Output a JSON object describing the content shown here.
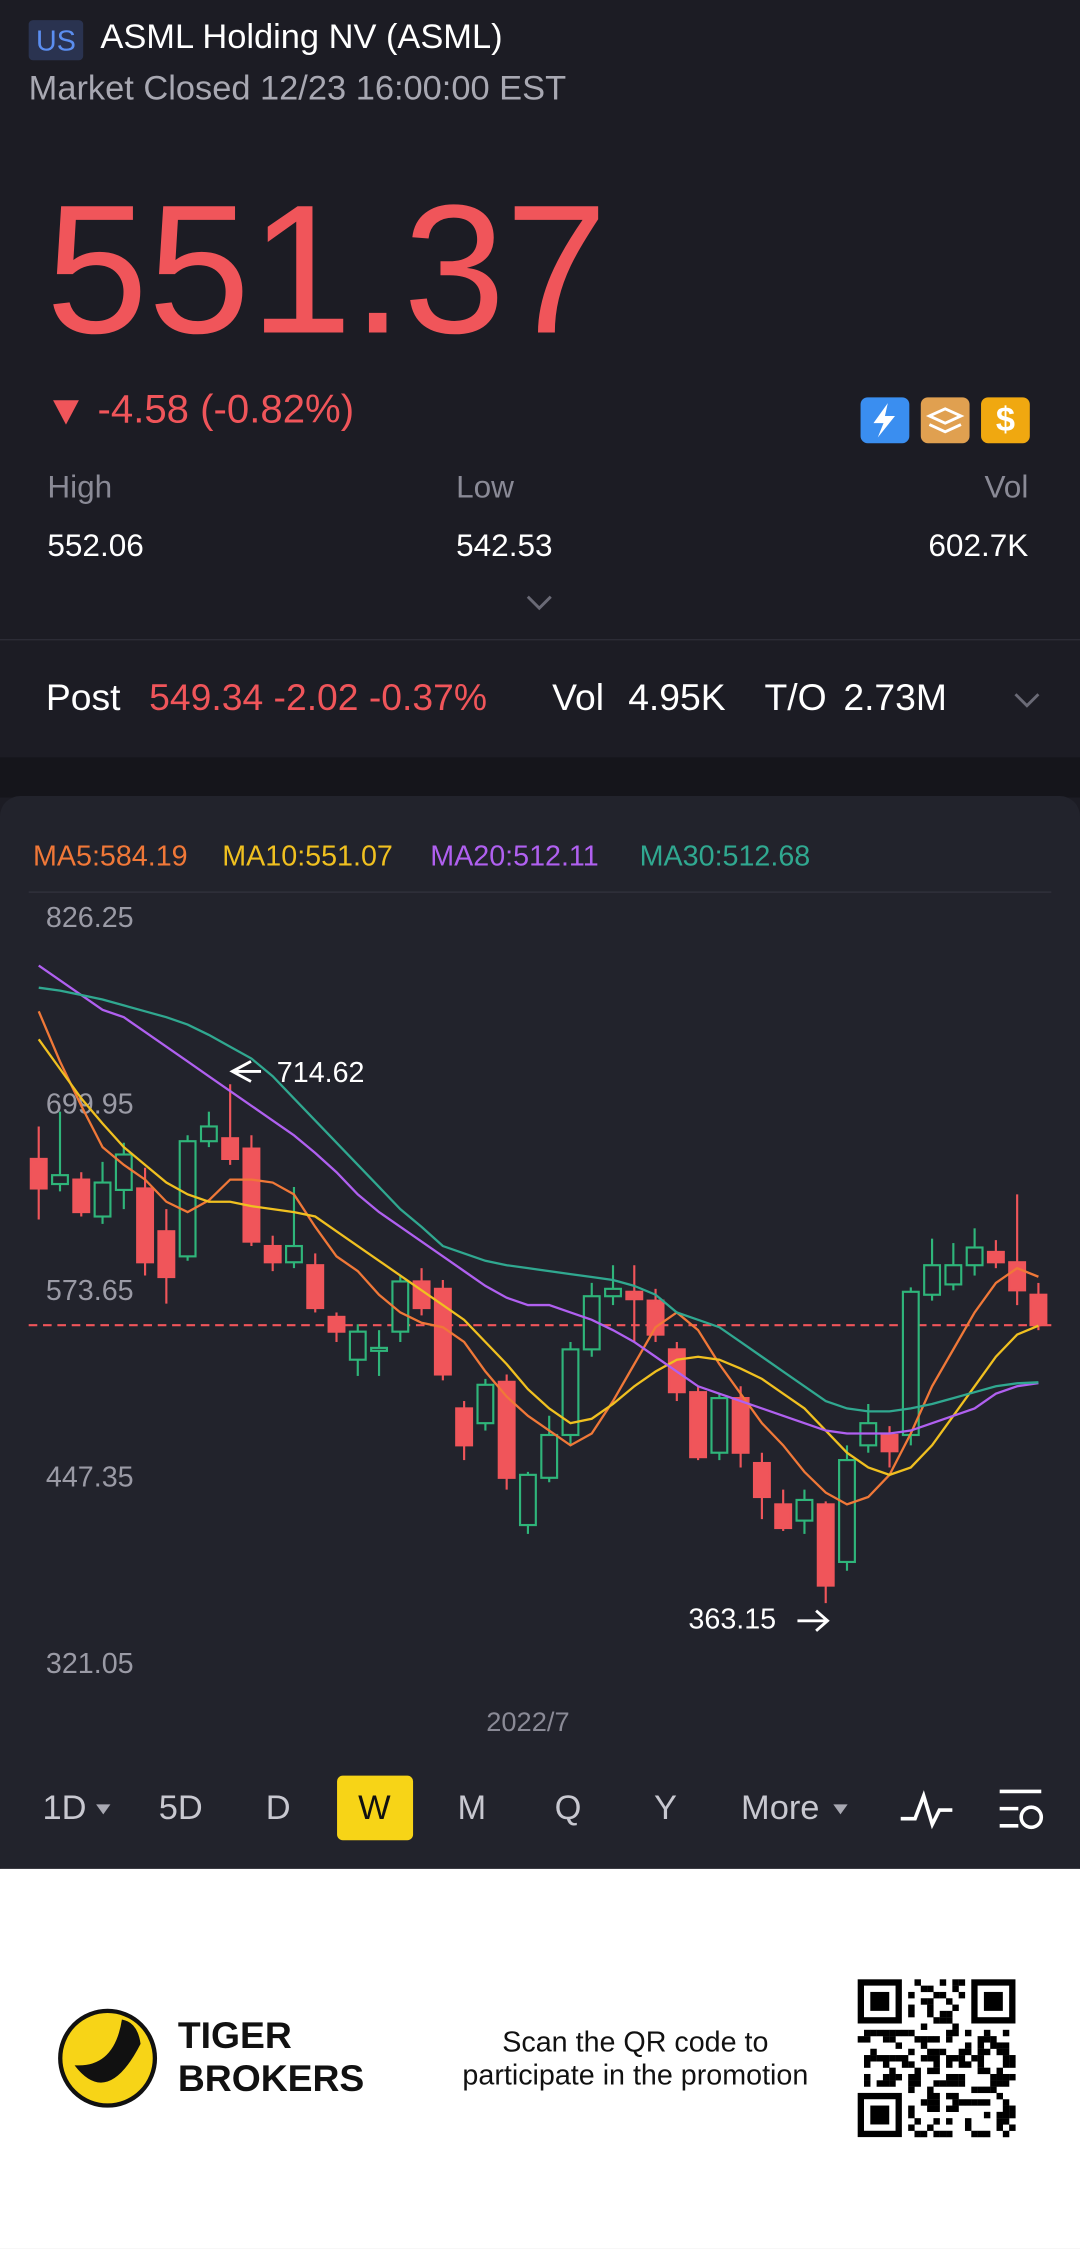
{
  "header": {
    "badge": "US",
    "title": "ASML Holding NV (ASML)",
    "status": "Market Closed 12/23 16:00:00 EST"
  },
  "quote": {
    "price": "551.37",
    "change": "-4.58 (-0.82%)",
    "stats": [
      {
        "label": "High",
        "value": "552.06"
      },
      {
        "label": "Low",
        "value": "542.53"
      },
      {
        "label": "Vol",
        "value": "602.7K"
      }
    ]
  },
  "post": {
    "label": "Post",
    "change": "549.34 -2.02 -0.37%",
    "vol_label": "Vol",
    "vol": "4.95K",
    "to_label": "T/O",
    "to": "2.73M"
  },
  "chart_data": {
    "type": "candlestick",
    "categories": [
      null,
      null,
      null,
      null,
      null,
      null,
      null,
      null,
      null,
      null,
      null,
      null,
      null,
      null,
      null,
      null,
      null,
      null,
      null,
      null,
      null,
      null,
      null,
      "2022/7",
      null,
      null,
      null,
      null,
      null,
      null,
      null,
      null,
      null,
      null,
      null,
      null,
      null,
      null,
      null,
      null,
      null,
      null,
      null,
      null,
      null,
      null,
      null,
      null
    ],
    "open": [
      664,
      647,
      650,
      625,
      643,
      644,
      615,
      598,
      676,
      678,
      671,
      605,
      594,
      592,
      557,
      528,
      534,
      547,
      581,
      576,
      495,
      485,
      513,
      416,
      448,
      477,
      535,
      571,
      574,
      568,
      535,
      506,
      465,
      502,
      458,
      430,
      419,
      430,
      391,
      470,
      477,
      477,
      572,
      579,
      592,
      601,
      594,
      572
    ],
    "high": [
      686,
      696,
      655,
      662,
      675,
      658,
      630,
      680,
      696,
      714.62,
      680,
      612,
      645,
      600,
      560,
      552,
      548,
      585,
      590,
      582,
      500,
      515,
      518,
      452,
      490,
      540,
      580,
      592,
      592,
      576,
      540,
      510,
      505,
      510,
      465,
      440,
      440,
      432,
      470,
      498,
      483,
      577,
      610,
      607,
      617,
      609,
      640,
      580
    ],
    "low": [
      623,
      642,
      625,
      620,
      630,
      585,
      566,
      595,
      672,
      660,
      605,
      588,
      590,
      560,
      540,
      517,
      517,
      540,
      558,
      514,
      460,
      480,
      440,
      410,
      445,
      470,
      530,
      565,
      540,
      540,
      500,
      460,
      460,
      455,
      420,
      412,
      410,
      363.15,
      385,
      465,
      455,
      470,
      568,
      575,
      585,
      590,
      565,
      548
    ],
    "close": [
      644,
      653,
      628,
      648,
      667,
      594,
      584,
      676,
      686,
      664,
      608,
      594,
      605,
      563,
      547,
      547,
      536,
      581,
      563,
      518,
      470,
      511,
      448,
      450,
      477,
      535,
      571,
      576,
      569,
      545,
      506,
      462,
      502,
      465,
      435,
      414,
      433,
      375,
      460,
      485,
      466,
      574,
      592,
      592,
      604,
      594,
      575,
      551.37
    ],
    "up_color": "#2fb57a",
    "down_color": "#f0555a",
    "ylim": [
      321.05,
      826.25
    ],
    "yticks": [
      826.25,
      699.95,
      573.65,
      447.35,
      321.05
    ],
    "price_line": 551.37,
    "ma": [
      {
        "label": "MA5:584.19",
        "color": "#f07838",
        "values": [
          764,
          730,
          700,
          672,
          660,
          650,
          635,
          628,
          636,
          650,
          650,
          648,
          640,
          618,
          598,
          588,
          572,
          560,
          553,
          550,
          540,
          520,
          503,
          490,
          480,
          470,
          478,
          500,
          525,
          550,
          560,
          548,
          525,
          505,
          485,
          470,
          452,
          438,
          430,
          435,
          450,
          478,
          510,
          535,
          560,
          580,
          590,
          584.19
        ]
      },
      {
        "label": "MA10:551.07",
        "color": "#f0c020",
        "values": [
          745,
          725,
          705,
          688,
          672,
          660,
          648,
          640,
          635,
          635,
          632,
          630,
          628,
          625,
          615,
          605,
          595,
          585,
          575,
          565,
          555,
          540,
          525,
          508,
          495,
          485,
          488,
          498,
          510,
          520,
          528,
          530,
          528,
          522,
          515,
          505,
          495,
          480,
          465,
          455,
          450,
          455,
          470,
          490,
          510,
          530,
          545,
          551.07
        ]
      },
      {
        "label": "MA20:512.11",
        "color": "#b060f0",
        "values": [
          795,
          785,
          775,
          765,
          760,
          750,
          740,
          730,
          720,
          710,
          700,
          690,
          680,
          668,
          655,
          640,
          628,
          618,
          608,
          598,
          588,
          578,
          570,
          565,
          565,
          560,
          555,
          548,
          540,
          530,
          520,
          510,
          505,
          500,
          495,
          490,
          485,
          480,
          478,
          478,
          478,
          480,
          485,
          490,
          495,
          505,
          510,
          512.11
        ]
      },
      {
        "label": "MA30:512.68",
        "color": "#30a890",
        "values": [
          780,
          778,
          775,
          772,
          768,
          764,
          760,
          755,
          748,
          740,
          732,
          720,
          705,
          690,
          675,
          660,
          645,
          630,
          618,
          605,
          600,
          595,
          592,
          590,
          588,
          586,
          584,
          582,
          578,
          572,
          560,
          555,
          550,
          540,
          530,
          520,
          510,
          500,
          495,
          493,
          493,
          495,
          498,
          502,
          506,
          510,
          512,
          512.68
        ]
      }
    ],
    "annotations": [
      {
        "label": "714.62"
      },
      {
        "label": "363.15"
      }
    ]
  },
  "tabs": [
    "1D",
    "5D",
    "D",
    "W",
    "M",
    "Q",
    "Y",
    "More"
  ],
  "active_tab": 3,
  "footer": {
    "brand": [
      "TIGER",
      "BROKERS"
    ],
    "promo": [
      "Scan the QR code to",
      "participate in the promotion"
    ]
  }
}
